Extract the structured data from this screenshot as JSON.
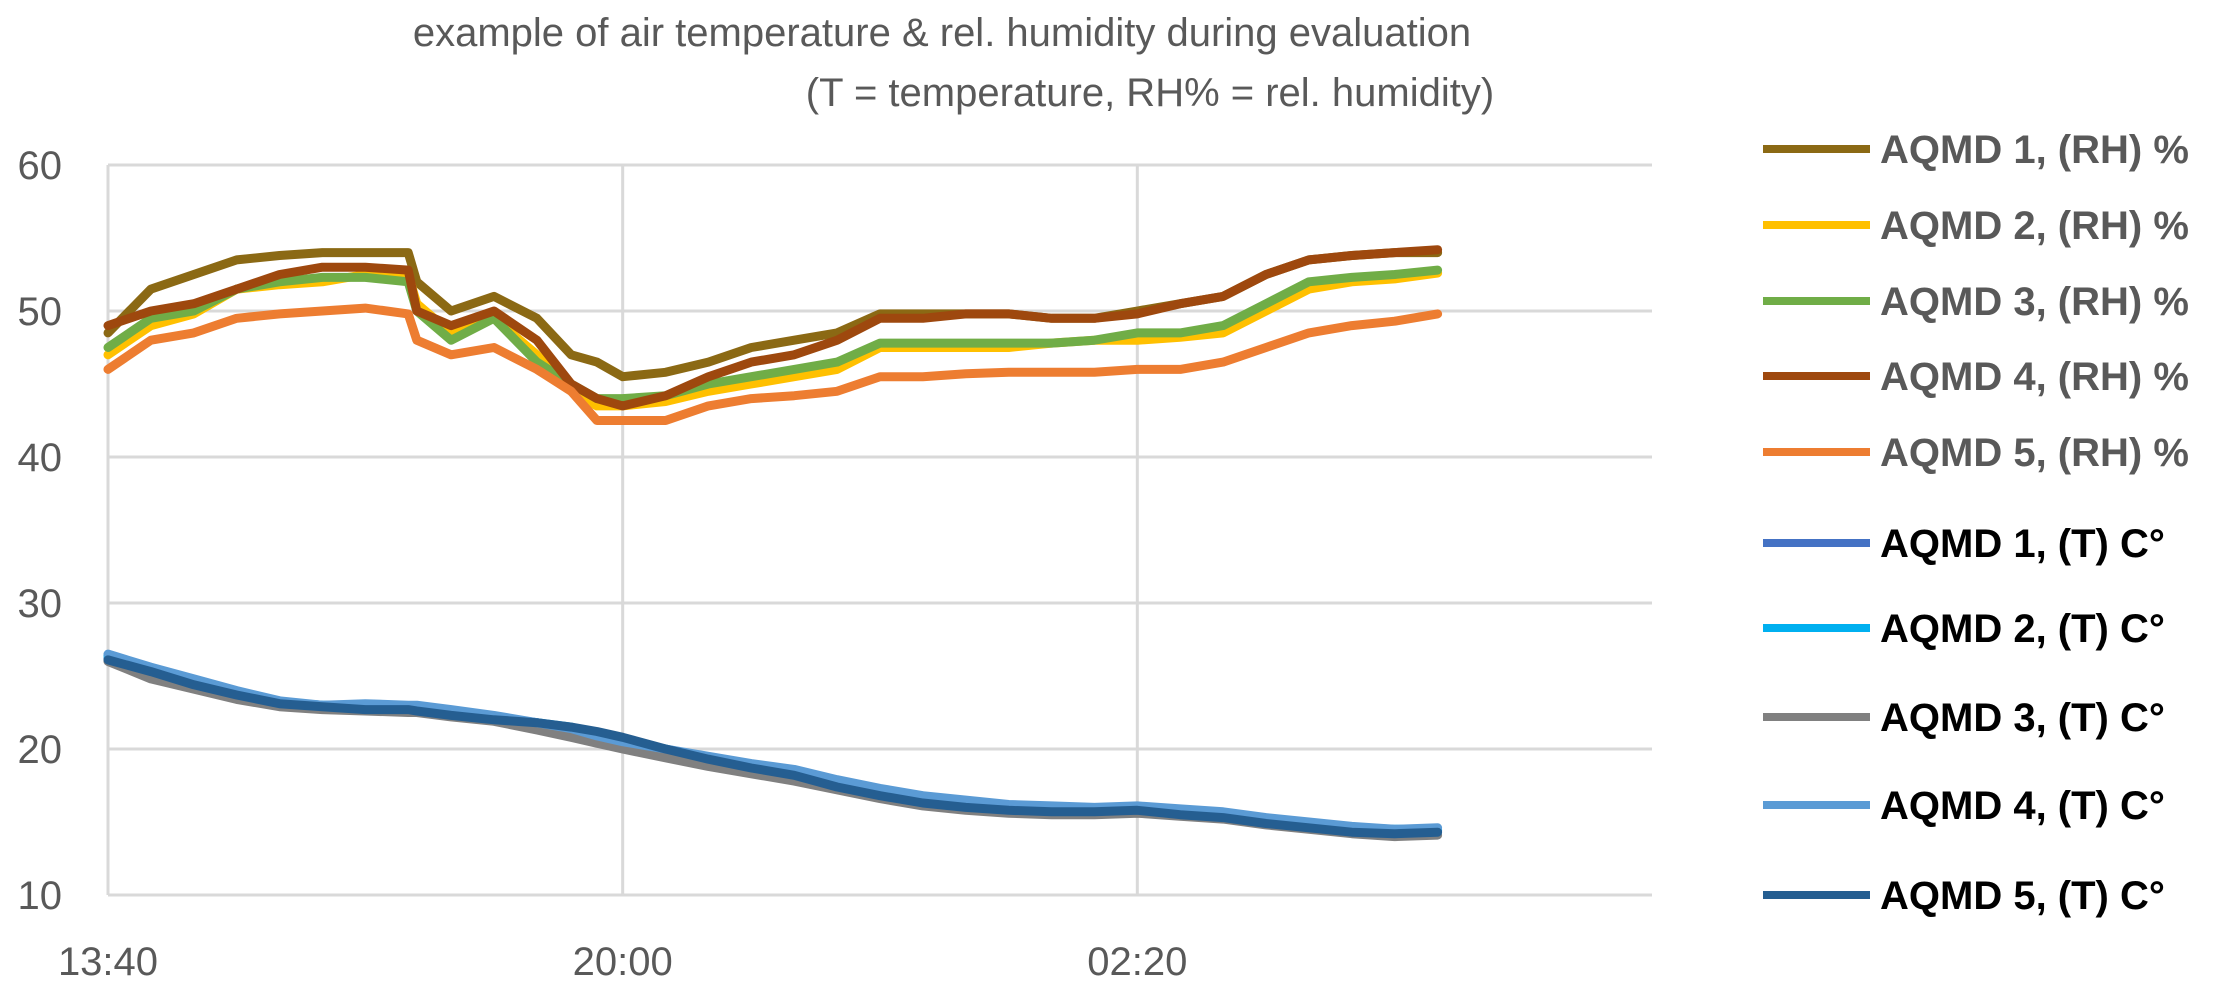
{
  "chart_data": {
    "type": "line",
    "title": "example of air temperature & rel. humidity during evaluation",
    "subtitle": "(T = temperature, RH% = rel. humidity)",
    "xlabel": "",
    "ylabel": "",
    "x_unit": "hours since 13:40",
    "x_range": [
      0,
      18
    ],
    "x_ticks": [
      0,
      6,
      12
    ],
    "x_tick_labels": [
      "13:40",
      "20:00",
      "02:20"
    ],
    "ylim": [
      10,
      60
    ],
    "y_ticks": [
      10,
      20,
      30,
      40,
      50,
      60
    ],
    "y_tick_labels": [
      "10",
      "20",
      "30",
      "40",
      "50",
      "60"
    ],
    "grid": true,
    "legend_position": "right",
    "x": [
      0,
      0.5,
      1,
      1.5,
      2,
      2.5,
      3,
      3.5,
      3.6,
      4,
      4.5,
      5,
      5.4,
      5.7,
      6,
      6.5,
      7,
      7.5,
      8,
      8.5,
      9,
      9.5,
      10,
      10.5,
      11,
      11.5,
      12,
      12.5,
      13,
      13.5,
      14,
      14.5,
      15,
      15.5
    ],
    "series": [
      {
        "name": "AQMD 1, (RH) %",
        "color": "#8B6914",
        "kind": "RH",
        "values": [
          48.5,
          51.5,
          52.5,
          53.5,
          53.8,
          54.0,
          54.0,
          54.0,
          52.0,
          50.0,
          51.0,
          49.5,
          47.0,
          46.5,
          45.5,
          45.8,
          46.5,
          47.5,
          48.0,
          48.5,
          49.8,
          49.8,
          49.8,
          49.8,
          49.5,
          49.5,
          50.0,
          50.5,
          51.0,
          52.5,
          53.5,
          53.8,
          54.0,
          54.0
        ]
      },
      {
        "name": "AQMD 2, (RH) %",
        "color": "#FFC000",
        "kind": "RH",
        "values": [
          47.0,
          49.0,
          49.8,
          51.5,
          51.8,
          52.0,
          52.5,
          52.5,
          50.5,
          48.5,
          49.5,
          47.0,
          44.5,
          43.5,
          43.5,
          43.8,
          44.5,
          45.0,
          45.5,
          46.0,
          47.5,
          47.5,
          47.5,
          47.5,
          47.8,
          48.0,
          48.0,
          48.2,
          48.5,
          50.0,
          51.5,
          52.0,
          52.2,
          52.6
        ]
      },
      {
        "name": "AQMD 3, (RH) %",
        "color": "#70AD47",
        "kind": "RH",
        "values": [
          47.5,
          49.5,
          50.0,
          51.5,
          52.0,
          52.3,
          52.3,
          52.0,
          50.0,
          48.0,
          49.5,
          46.5,
          45.0,
          44.0,
          44.0,
          44.2,
          45.0,
          45.5,
          46.0,
          46.5,
          47.8,
          47.8,
          47.8,
          47.8,
          47.8,
          48.0,
          48.5,
          48.5,
          49.0,
          50.5,
          52.0,
          52.3,
          52.5,
          52.8
        ]
      },
      {
        "name": "AQMD 4, (RH) %",
        "color": "#9E480E",
        "kind": "RH",
        "values": [
          49.0,
          50.0,
          50.5,
          51.5,
          52.5,
          53.0,
          53.0,
          52.8,
          50.0,
          49.0,
          50.0,
          48.0,
          45.0,
          44.0,
          43.5,
          44.2,
          45.5,
          46.5,
          47.0,
          48.0,
          49.5,
          49.5,
          49.8,
          49.8,
          49.5,
          49.5,
          49.8,
          50.5,
          51.0,
          52.5,
          53.5,
          53.8,
          54.0,
          54.2
        ]
      },
      {
        "name": "AQMD 5, (RH) %",
        "color": "#ED7D31",
        "kind": "RH",
        "values": [
          46.0,
          48.0,
          48.5,
          49.5,
          49.8,
          50.0,
          50.2,
          49.8,
          48.0,
          47.0,
          47.5,
          46.0,
          44.5,
          42.5,
          42.5,
          42.5,
          43.5,
          44.0,
          44.2,
          44.5,
          45.5,
          45.5,
          45.7,
          45.8,
          45.8,
          45.8,
          46.0,
          46.0,
          46.5,
          47.5,
          48.5,
          49.0,
          49.3,
          49.8
        ]
      },
      {
        "name": "AQMD 1, (T) C°",
        "color": "#4472C4",
        "kind": "T",
        "values": [
          26.2,
          25.2,
          24.5,
          23.8,
          23.2,
          23.0,
          22.9,
          22.9,
          22.8,
          22.5,
          22.2,
          21.8,
          21.4,
          21.0,
          20.5,
          19.8,
          19.2,
          18.6,
          18.2,
          17.5,
          16.9,
          16.4,
          16.2,
          15.9,
          15.8,
          15.8,
          15.9,
          15.6,
          15.4,
          15.0,
          14.7,
          14.4,
          14.3,
          14.4
        ]
      },
      {
        "name": "AQMD 2, (T) C°",
        "color": "#00B0F0",
        "kind": "T",
        "values": [
          26.4,
          25.4,
          24.6,
          23.8,
          23.2,
          23.0,
          23.0,
          22.9,
          22.8,
          22.6,
          22.2,
          21.8,
          21.5,
          21.0,
          20.6,
          20.0,
          19.4,
          18.8,
          18.3,
          17.6,
          17.0,
          16.6,
          16.3,
          16.1,
          16.0,
          15.9,
          16.0,
          15.8,
          15.6,
          15.2,
          14.9,
          14.6,
          14.5,
          14.5
        ]
      },
      {
        "name": "AQMD 3, (T) C°",
        "color": "#808080",
        "kind": "T",
        "values": [
          26.0,
          24.8,
          24.1,
          23.4,
          22.9,
          22.7,
          22.6,
          22.5,
          22.5,
          22.2,
          21.9,
          21.3,
          20.8,
          20.4,
          20.0,
          19.4,
          18.8,
          18.3,
          17.8,
          17.2,
          16.6,
          16.1,
          15.8,
          15.6,
          15.5,
          15.5,
          15.6,
          15.4,
          15.2,
          14.8,
          14.5,
          14.2,
          14.0,
          14.1
        ]
      },
      {
        "name": "AQMD 4, (T) C°",
        "color": "#5B9BD5",
        "kind": "T",
        "values": [
          26.5,
          25.6,
          24.8,
          24.0,
          23.3,
          23.0,
          23.1,
          23.0,
          23.0,
          22.7,
          22.3,
          21.8,
          21.4,
          20.9,
          20.5,
          20.0,
          19.5,
          19.0,
          18.6,
          17.9,
          17.3,
          16.8,
          16.5,
          16.2,
          16.1,
          16.0,
          16.1,
          15.9,
          15.7,
          15.3,
          15.0,
          14.7,
          14.5,
          14.6
        ]
      },
      {
        "name": "AQMD 5, (T) C°",
        "color": "#255E91",
        "kind": "T",
        "values": [
          26.1,
          25.3,
          24.4,
          23.7,
          23.1,
          22.9,
          22.7,
          22.7,
          22.6,
          22.3,
          22.0,
          21.8,
          21.5,
          21.2,
          20.8,
          20.0,
          19.3,
          18.7,
          18.2,
          17.4,
          16.8,
          16.3,
          16.0,
          15.8,
          15.7,
          15.7,
          15.8,
          15.5,
          15.3,
          14.9,
          14.6,
          14.3,
          14.2,
          14.3
        ]
      }
    ]
  }
}
